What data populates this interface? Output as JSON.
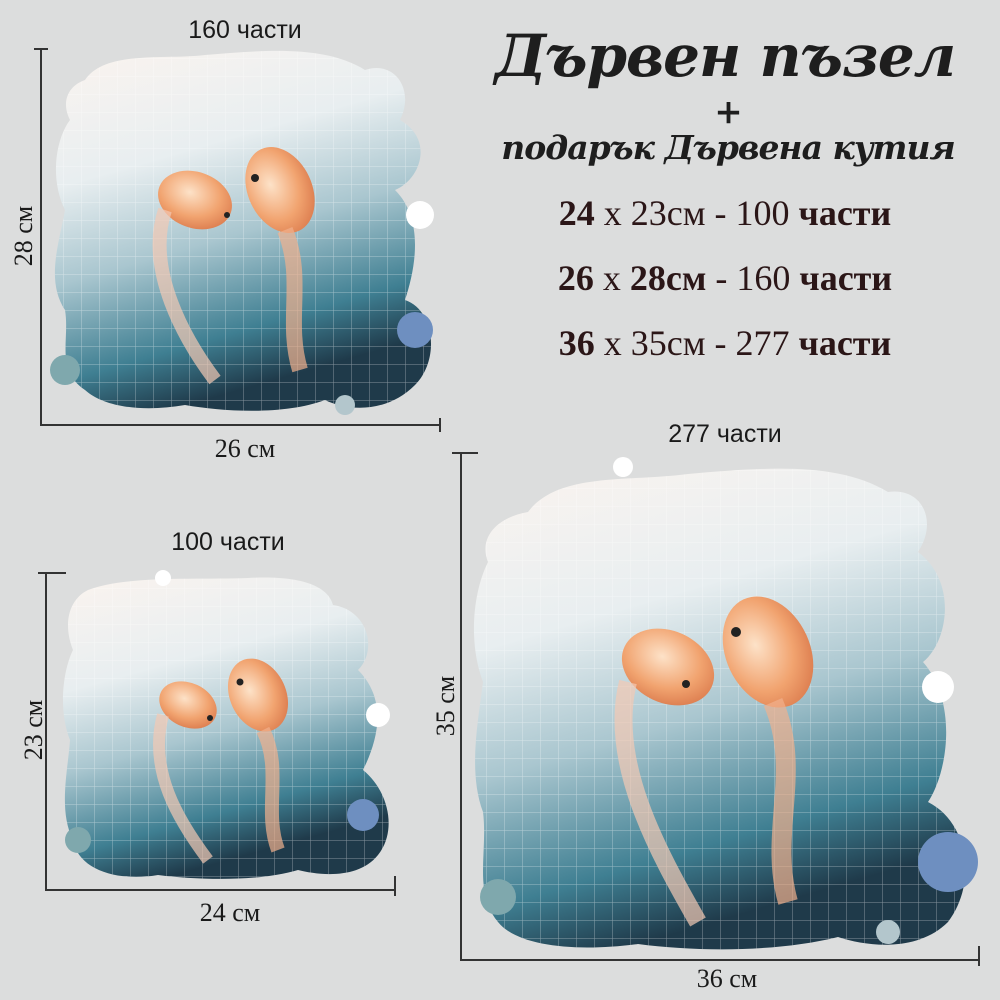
{
  "heading": {
    "title": "Дървен пъзел",
    "plus": "+",
    "subtitle": "подарък Дървена кутия"
  },
  "specs": [
    {
      "w": "24",
      "x": "x",
      "h": "23см",
      "dash": "-",
      "pieces": "100",
      "unit": "части"
    },
    {
      "w": "26",
      "x": "x",
      "h": "28см",
      "dash": "-",
      "pieces": "160",
      "unit": "части"
    },
    {
      "w": "36",
      "x": "x",
      "h": "35см",
      "dash": "-",
      "pieces": "277",
      "unit": "части"
    }
  ],
  "puzzles": [
    {
      "pieces_label": "160 части",
      "height_label": "28 см",
      "width_label": "26 см"
    },
    {
      "pieces_label": "100 части",
      "height_label": "23 см",
      "width_label": "24 см"
    },
    {
      "pieces_label": "277 части",
      "height_label": "35 см",
      "width_label": "36 см"
    }
  ],
  "colors": {
    "background": "#dcdddd",
    "text": "#2b1617",
    "fish": "#f0a070",
    "water": "#4f8fa0"
  }
}
